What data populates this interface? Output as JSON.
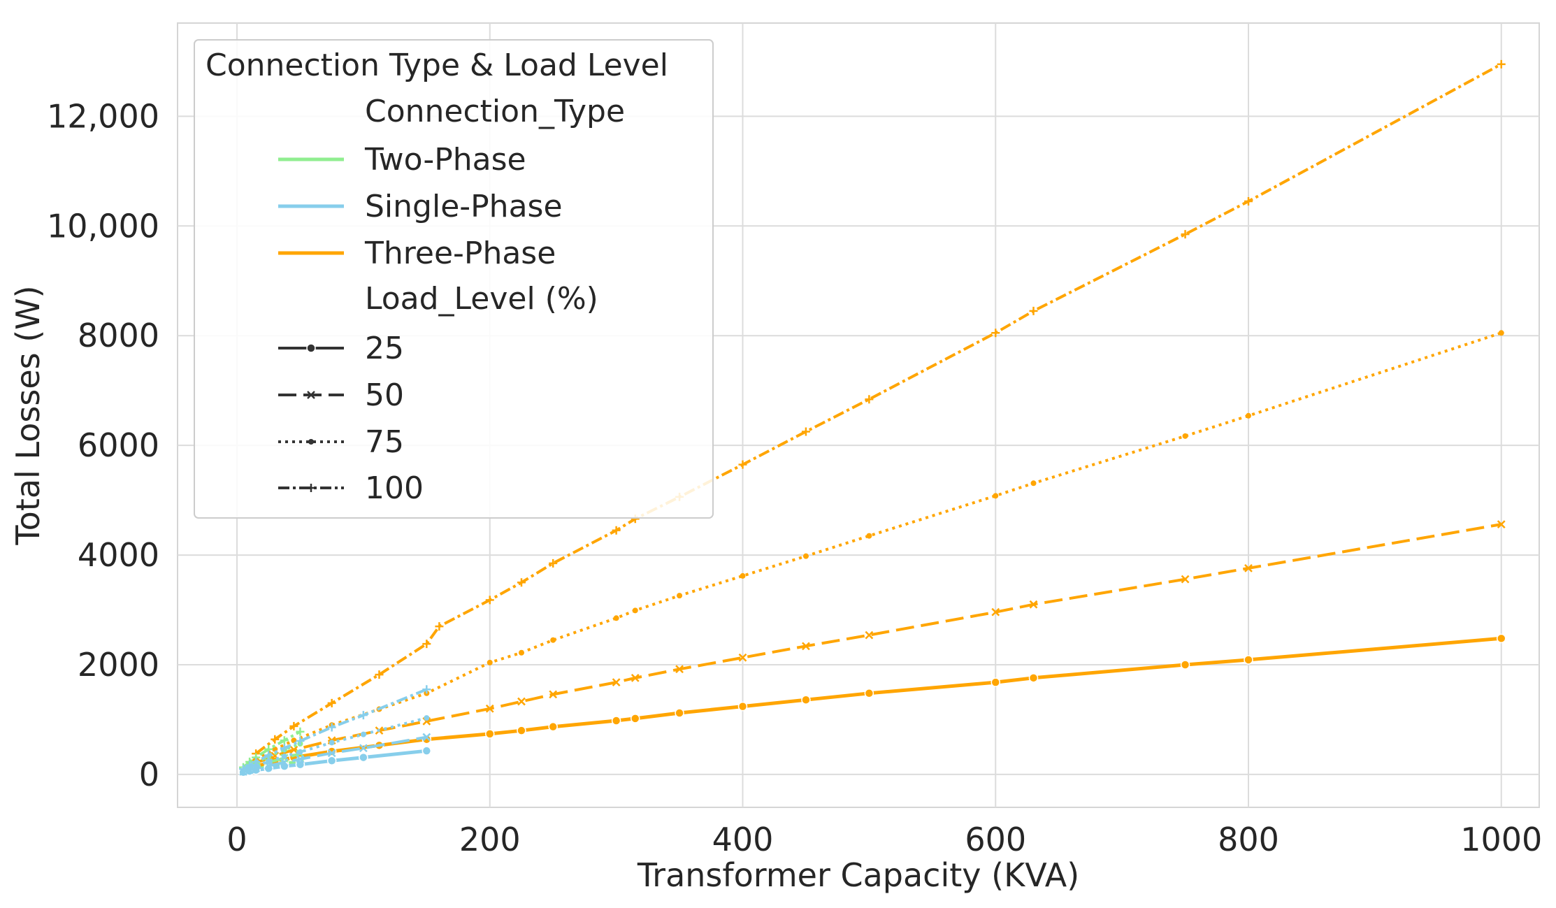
{
  "chart_data": {
    "type": "line",
    "title": "",
    "xlabel": "Transformer Capacity (KVA)",
    "ylabel": "Total Losses (W)",
    "xlim": [
      -47,
      1030
    ],
    "ylim": [
      -600,
      13700
    ],
    "xticks": [
      0,
      200,
      400,
      600,
      800,
      1000
    ],
    "xtick_labels": [
      "0",
      "200",
      "400",
      "600",
      "800",
      "1000"
    ],
    "yticks": [
      0,
      2000,
      4000,
      6000,
      8000,
      10000,
      12000
    ],
    "ytick_labels": [
      "0",
      "2000",
      "4000",
      "6000",
      "8000",
      "10,000",
      "12,000"
    ],
    "grid": true,
    "legend_position": "top-left",
    "legend": {
      "title": "Connection Type & Load Level",
      "hue_header": "Connection_Type",
      "style_header": "Load_Level (%)",
      "hue_entries": [
        {
          "label": "Two-Phase",
          "color": "#90ee90"
        },
        {
          "label": "Single-Phase",
          "color": "#87ceeb"
        },
        {
          "label": "Three-Phase",
          "color": "#ffa500"
        }
      ],
      "style_entries": [
        {
          "label": "25",
          "dash": "solid",
          "marker": "circle"
        },
        {
          "label": "50",
          "dash": "dashed",
          "marker": "x"
        },
        {
          "label": "75",
          "dash": "dotted",
          "marker": "dot"
        },
        {
          "label": "100",
          "dash": "dashdot",
          "marker": "plus"
        }
      ]
    },
    "series": [
      {
        "name": "Two-Phase 25",
        "color": "#90ee90",
        "load": "25",
        "x": [
          5,
          10,
          15,
          25,
          37.5,
          50
        ],
        "y": [
          40,
          70,
          95,
          140,
          190,
          240
        ]
      },
      {
        "name": "Two-Phase 50",
        "color": "#90ee90",
        "load": "50",
        "x": [
          5,
          10,
          15,
          25,
          37.5,
          50
        ],
        "y": [
          60,
          110,
          150,
          220,
          300,
          380
        ]
      },
      {
        "name": "Two-Phase 75",
        "color": "#90ee90",
        "load": "75",
        "x": [
          5,
          10,
          15,
          25,
          37.5,
          50
        ],
        "y": [
          90,
          160,
          220,
          330,
          450,
          560
        ]
      },
      {
        "name": "Two-Phase 100",
        "color": "#90ee90",
        "load": "100",
        "x": [
          5,
          10,
          15,
          25,
          37.5,
          50
        ],
        "y": [
          130,
          230,
          310,
          460,
          620,
          780
        ]
      },
      {
        "name": "Single-Phase 25",
        "color": "#87ceeb",
        "load": "25",
        "x": [
          5,
          10,
          15,
          25,
          37.5,
          50,
          75,
          100,
          150
        ],
        "y": [
          40,
          60,
          80,
          110,
          150,
          180,
          250,
          310,
          430
        ]
      },
      {
        "name": "Single-Phase 50",
        "color": "#87ceeb",
        "load": "50",
        "x": [
          5,
          10,
          15,
          25,
          37.5,
          50,
          75,
          100,
          150
        ],
        "y": [
          50,
          80,
          110,
          160,
          220,
          280,
          390,
          480,
          680
        ]
      },
      {
        "name": "Single-Phase 75",
        "color": "#87ceeb",
        "load": "75",
        "x": [
          5,
          10,
          15,
          25,
          37.5,
          50,
          75,
          100,
          150
        ],
        "y": [
          70,
          120,
          160,
          240,
          330,
          410,
          580,
          730,
          1030
        ]
      },
      {
        "name": "Single-Phase 100",
        "color": "#87ceeb",
        "load": "100",
        "x": [
          5,
          10,
          15,
          25,
          37.5,
          50,
          75,
          100,
          150
        ],
        "y": [
          100,
          170,
          230,
          350,
          480,
          610,
          860,
          1080,
          1550
        ]
      },
      {
        "name": "Three-Phase 25",
        "color": "#ffa500",
        "load": "25",
        "x": [
          15,
          30,
          45,
          75,
          112.5,
          150,
          200,
          225,
          250,
          300,
          315,
          350,
          400,
          450,
          500,
          600,
          630,
          750,
          800,
          1000
        ],
        "y": [
          150,
          240,
          310,
          420,
          530,
          640,
          740,
          800,
          870,
          980,
          1020,
          1120,
          1240,
          1360,
          1480,
          1680,
          1760,
          2000,
          2090,
          2480
        ]
      },
      {
        "name": "Three-Phase 50",
        "color": "#ffa500",
        "load": "50",
        "x": [
          15,
          30,
          45,
          75,
          112.5,
          150,
          200,
          225,
          250,
          300,
          315,
          350,
          400,
          450,
          500,
          600,
          630,
          750,
          800,
          1000
        ],
        "y": [
          210,
          340,
          450,
          620,
          800,
          970,
          1200,
          1330,
          1460,
          1680,
          1760,
          1920,
          2130,
          2340,
          2540,
          2960,
          3100,
          3560,
          3760,
          4560
        ]
      },
      {
        "name": "Three-Phase 75",
        "color": "#ffa500",
        "load": "75",
        "x": [
          15,
          30,
          45,
          75,
          112.5,
          150,
          200,
          225,
          250,
          300,
          315,
          350,
          400,
          450,
          500,
          600,
          630,
          750,
          800,
          1000
        ],
        "y": [
          270,
          460,
          620,
          900,
          1190,
          1480,
          2040,
          2220,
          2450,
          2850,
          2990,
          3260,
          3620,
          3980,
          4350,
          5080,
          5310,
          6170,
          6540,
          8050
        ]
      },
      {
        "name": "Three-Phase 100",
        "color": "#ffa500",
        "load": "100",
        "x": [
          15,
          30,
          45,
          75,
          112.5,
          150,
          160,
          200,
          225,
          250,
          300,
          315,
          350,
          400,
          450,
          500,
          600,
          630,
          750,
          800,
          1000
        ],
        "y": [
          380,
          640,
          880,
          1300,
          1820,
          2380,
          2700,
          3180,
          3500,
          3850,
          4450,
          4660,
          5060,
          5650,
          6250,
          6840,
          8050,
          8450,
          9850,
          10450,
          12950
        ]
      }
    ]
  }
}
